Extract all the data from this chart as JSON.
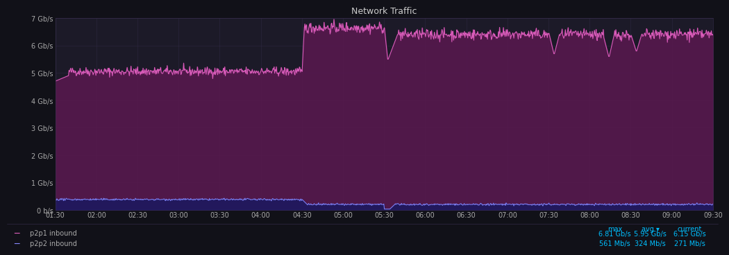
{
  "title": "Network Traffic",
  "background_color": "#111118",
  "plot_bg_color": "#1c1a28",
  "grid_color": "#3a3050",
  "text_color": "#aaaaaa",
  "title_color": "#cccccc",
  "figsize": [
    10.24,
    3.74
  ],
  "dpi": 100,
  "ylim": [
    0,
    7000000000
  ],
  "yticks": [
    0,
    1000000000,
    2000000000,
    3000000000,
    4000000000,
    5000000000,
    6000000000,
    7000000000
  ],
  "ytick_labels": [
    "0 b/s",
    "1 Gb/s",
    "2 Gb/s",
    "3 Gb/s",
    "4 Gb/s",
    "5 Gb/s",
    "6 Gb/s",
    "7 Gb/s"
  ],
  "xtick_labels": [
    "01:30",
    "02:00",
    "02:30",
    "03:00",
    "03:30",
    "04:00",
    "04:30",
    "05:00",
    "05:30",
    "06:00",
    "06:30",
    "07:00",
    "07:30",
    "08:00",
    "08:30",
    "09:00",
    "09:30"
  ],
  "series1_color": "#e060c0",
  "series1_fill": "#5a1850",
  "series2_color": "#8888ff",
  "series2_fill": "#1a1860",
  "legend_label1": "p2p1 inbound",
  "legend_label2": "p2p2 inbound",
  "stats_header_color": "#00bfff",
  "stats_max1": "6.81 Gb/s",
  "stats_avg1": "5.95 Gb/s",
  "stats_cur1": "6.15 Gb/s",
  "stats_max2": "561 Mb/s",
  "stats_avg2": "324 Mb/s",
  "stats_cur2": "271 Mb/s"
}
